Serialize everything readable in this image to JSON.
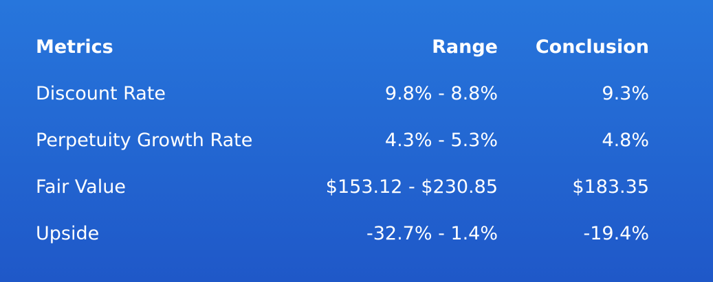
{
  "table": {
    "header": [
      "Metrics",
      "Range",
      "Conclusion"
    ],
    "rows": [
      [
        "Discount Rate",
        "9.8% - 8.8%",
        "9.3%"
      ],
      [
        "Perpetuity Growth Rate",
        "4.3% - 5.3%",
        "4.8%"
      ],
      [
        "Fair Value",
        "$153.12 - $230.85",
        "$183.35"
      ],
      [
        "Upside",
        "-32.7% - 1.4%",
        "-19.4%"
      ]
    ]
  }
}
